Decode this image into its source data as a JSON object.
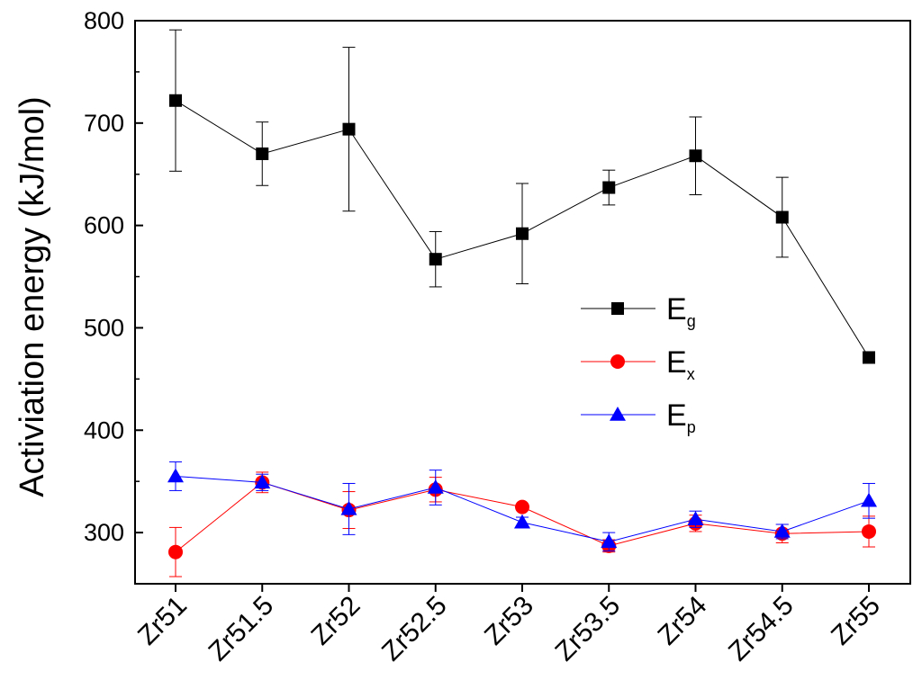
{
  "chart_data": {
    "type": "line",
    "title": "",
    "xlabel": "",
    "ylabel": "Activiation energy  (kJ/mol)",
    "categories": [
      "Zr51",
      "Zr51.5",
      "Zr52",
      "Zr52.5",
      "Zr53",
      "Zr53.5",
      "Zr54",
      "Zr54.5",
      "Zr55"
    ],
    "ylim": [
      250,
      800
    ],
    "yticks": [
      300,
      400,
      500,
      600,
      700,
      800
    ],
    "grid": false,
    "legend_position": "center-right",
    "series": [
      {
        "name": "E",
        "subscript": "g",
        "color": "#000000",
        "marker": "square",
        "values": [
          722,
          670,
          694,
          567,
          592,
          637,
          668,
          608,
          471
        ],
        "errors": [
          69,
          31,
          80,
          27,
          49,
          17,
          38,
          39,
          0
        ]
      },
      {
        "name": "E",
        "subscript": "x",
        "color": "#ff0000",
        "marker": "circle",
        "values": [
          281,
          349,
          322,
          342,
          325,
          287,
          309,
          299,
          301
        ],
        "errors": [
          24,
          10,
          18,
          12,
          0,
          6,
          8,
          9,
          15
        ]
      },
      {
        "name": "E",
        "subscript": "p",
        "color": "#0000ff",
        "marker": "triangle",
        "values": [
          355,
          349,
          323,
          344,
          310,
          291,
          313,
          301,
          331
        ],
        "errors": [
          14,
          8,
          25,
          17,
          5,
          9,
          8,
          7,
          17
        ]
      }
    ]
  }
}
